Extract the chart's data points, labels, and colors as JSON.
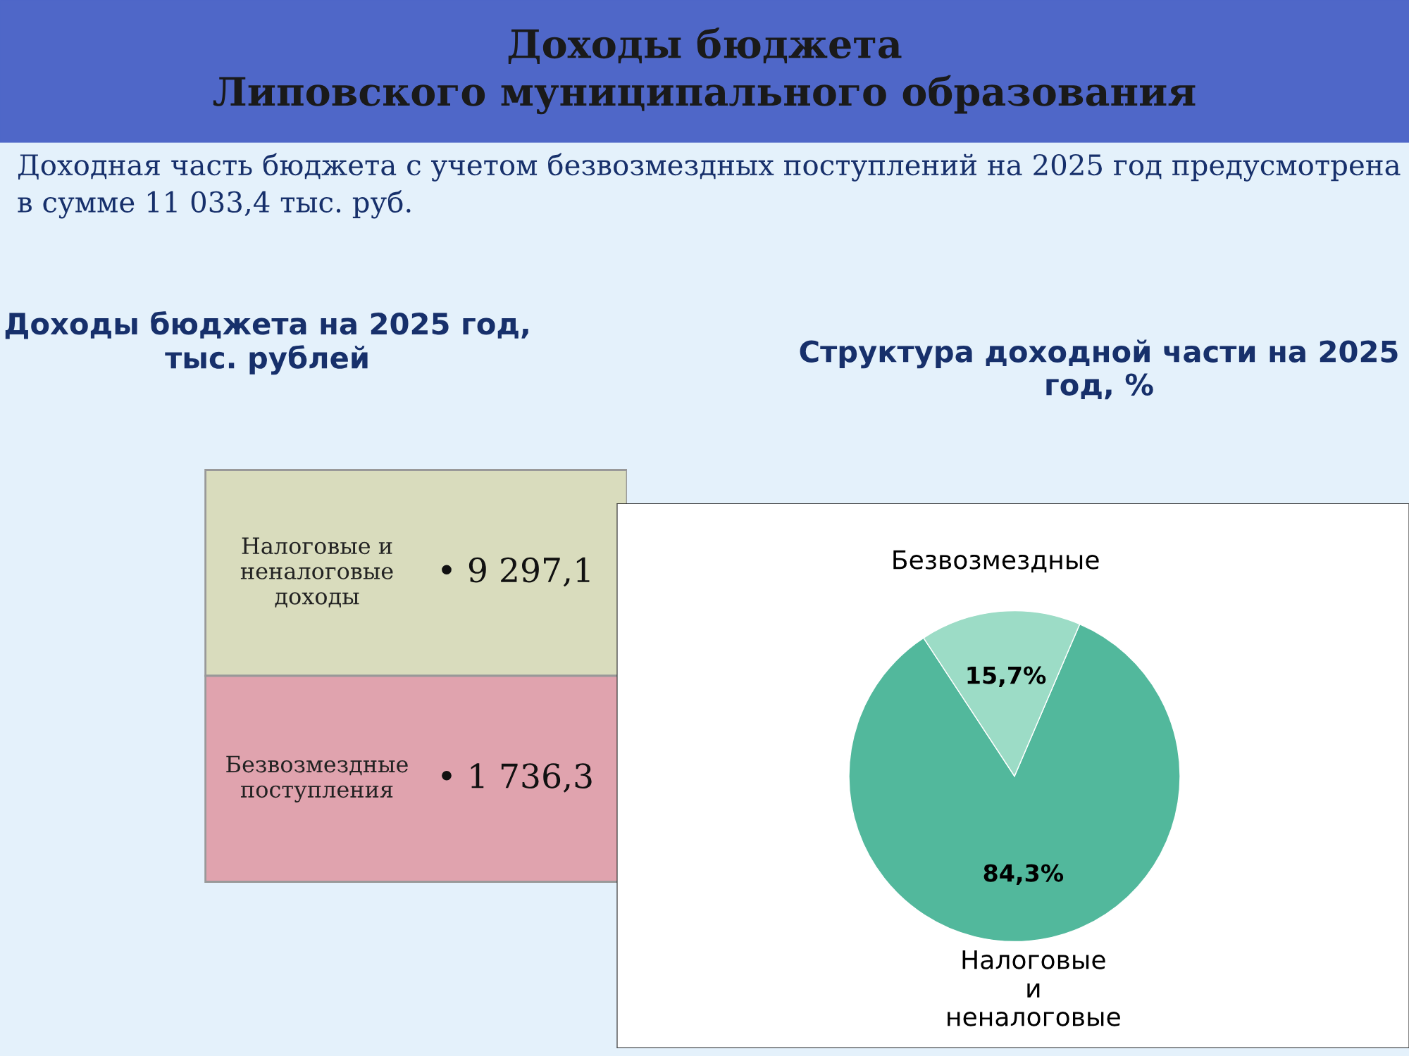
{
  "chart_data": [
    {
      "type": "other",
      "title": "Доходы бюджета\nЛиповского муниципального образования",
      "annotations": [
        "Доходная часть бюджета с учетом безвозмездных поступлений на 2025 год предусмотрена в сумме 11 033,4 тыс. руб."
      ]
    },
    {
      "type": "other",
      "title": "Доходы бюджета на 2025 год, тыс. рублей",
      "categories": [
        "Налоговые и неналоговые доходы",
        "Безвозмездные поступления"
      ],
      "value_labels": [
        "• 9 297,1",
        "• 1 736,3"
      ],
      "colors": [
        "#d9dcbd",
        "#e0a3ae"
      ]
    },
    {
      "type": "pie",
      "title": "Структура доходной части на 2025 год, %",
      "categories": [
        "Налоговые и неналоговые",
        "Безвозмездные"
      ],
      "values": [
        84.3,
        15.7
      ],
      "colors": [
        "#52b89c",
        "#9cdcc6"
      ],
      "value_labels": [
        "84,3%",
        "15,7%"
      ],
      "legend": false
    }
  ]
}
